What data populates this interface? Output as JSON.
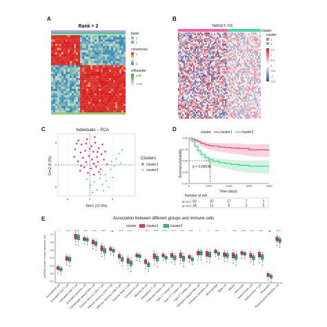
{
  "panels": {
    "A": {
      "letter": "A",
      "title": "Rank = 2",
      "legend": {
        "basis_label": "basis",
        "basis_items": [
          "1",
          "2"
        ],
        "consensus_label": "consensus",
        "consensus_ticks": [
          "1",
          "0"
        ],
        "silhouette_label": "silhouette",
        "silhouette_ticks": [
          "0.89",
          "-0.09"
        ]
      },
      "colors": {
        "high": "#d7191c",
        "mid": "#ffffbf",
        "low": "#2b83ba",
        "basis1": "#b79ddb",
        "basis2": "#4ecb8e",
        "silhouette": "#8fd16a"
      }
    },
    "B": {
      "letter": "B",
      "title": "TARGET−OS",
      "cluster_label": "cluster",
      "legend": {
        "title": "cluster",
        "items": [
          "1",
          "2"
        ],
        "ticks": [
          "1.5",
          "1",
          "0.5",
          "0",
          "-0.5",
          "-1",
          "-1.5"
        ]
      },
      "colors": {
        "cluster1": "#ff5fa2",
        "cluster2": "#4bd6a0"
      }
    },
    "C": {
      "letter": "C",
      "title": "Individuals − PCA",
      "xlabel": "Dim1 (10.4%)",
      "ylabel": "Dim2 (8.3%)",
      "xticks": [
        "-5",
        "0",
        "5"
      ],
      "yticks": [
        "5",
        "0",
        "-5"
      ],
      "legend_title": "Clusters",
      "legend_items": [
        "cluster1",
        "cluster2"
      ],
      "colors": {
        "cluster1": "#e8386d",
        "cluster2": "#3fd1a9"
      }
    },
    "D": {
      "letter": "D",
      "legend_title": "cluster",
      "legend_items": [
        "cluster1",
        "cluster2"
      ],
      "ylabel": "Survival probability",
      "xlabel": "Time (days)",
      "pvalue": "p = 0.00038",
      "xticks": [
        "0",
        "1000",
        "2000",
        "3000",
        "4000"
      ],
      "yticks": [
        "1.00",
        "0.75",
        "0.50",
        "0.25",
        "0.00"
      ],
      "risk_title": "Number at risk",
      "risk_rows": [
        {
          "name": "group1",
          "values": [
            "50",
            "37",
            "17",
            "7",
            "1"
          ]
        },
        {
          "name": "group2",
          "values": [
            "34",
            "11",
            "6",
            "2",
            "0"
          ]
        }
      ],
      "colors": {
        "cluster1": "#e8386d",
        "cluster2": "#2ecf7a"
      }
    },
    "E": {
      "letter": "E",
      "title": "Association between different groups and immune cells",
      "legend_title": "cluster",
      "legend_items": [
        "cluster1",
        "cluster2"
      ],
      "ylabel": "ssGSEA score of each immune cell",
      "yticks": [
        "0.7",
        "0.6",
        "0.5",
        "0.4",
        "0.3",
        "0.2",
        "0.1"
      ],
      "colors": {
        "cluster1": "#e8386d",
        "cluster2": "#2fbf8f"
      }
    }
  },
  "chart_data": [
    {
      "type": "heatmap",
      "panel": "A",
      "title": "Rank = 2",
      "blocks": [
        {
          "name": "block1",
          "fraction": 0.38,
          "consensus": 0.95
        },
        {
          "name": "block2",
          "fraction": 0.62,
          "consensus": 0.98
        }
      ],
      "colorbar": {
        "min": 0,
        "max": 1
      }
    },
    {
      "type": "heatmap",
      "panel": "B",
      "title": "TARGET−OS",
      "clusters": [
        {
          "name": "1",
          "fraction": 0.6
        },
        {
          "name": "2",
          "fraction": 0.4
        }
      ],
      "colorbar": {
        "min": -1.5,
        "max": 1.5
      }
    },
    {
      "type": "scatter",
      "panel": "C",
      "title": "Individuals − PCA",
      "xlabel": "Dim1 (10.4%)",
      "ylabel": "Dim2 (8.3%)",
      "xlim": [
        -7,
        10
      ],
      "ylim": [
        -7,
        7
      ],
      "series": [
        {
          "name": "cluster1",
          "points": [
            [
              -2.5,
              5.5
            ],
            [
              -1.8,
              4.6
            ],
            [
              -0.6,
              5.8
            ],
            [
              0.4,
              4.2
            ],
            [
              1.2,
              5.0
            ],
            [
              -3.2,
              3.5
            ],
            [
              -2.0,
              2.8
            ],
            [
              -1.0,
              3.2
            ],
            [
              0.8,
              3.0
            ],
            [
              2.0,
              3.8
            ],
            [
              -0.2,
              2.0
            ],
            [
              -1.5,
              1.6
            ],
            [
              0.5,
              1.2
            ],
            [
              1.6,
              1.8
            ],
            [
              2.6,
              2.4
            ],
            [
              -2.6,
              0.8
            ],
            [
              -0.8,
              0.6
            ],
            [
              0.9,
              0.3
            ],
            [
              1.8,
              0.7
            ],
            [
              3.1,
              1.2
            ],
            [
              -1.2,
              -0.5
            ],
            [
              0.3,
              -0.8
            ],
            [
              1.4,
              -0.4
            ],
            [
              2.4,
              -1.0
            ],
            [
              -0.4,
              -1.8
            ],
            [
              0.9,
              -2.2
            ],
            [
              2.0,
              -1.6
            ],
            [
              -2.1,
              -1.3
            ],
            [
              3.4,
              3.0
            ],
            [
              -3.4,
              1.8
            ],
            [
              1.1,
              6.3
            ],
            [
              -0.8,
              4.8
            ],
            [
              2.8,
              4.6
            ],
            [
              0.0,
              3.6
            ],
            [
              -1.9,
              -0.2
            ],
            [
              3.8,
              0.1
            ],
            [
              1.7,
              2.9
            ],
            [
              -2.9,
              4.8
            ]
          ]
        },
        {
          "name": "cluster2",
          "points": [
            [
              2.2,
              -3.0
            ],
            [
              3.4,
              -2.2
            ],
            [
              1.0,
              -3.8
            ],
            [
              4.6,
              -1.0
            ],
            [
              5.4,
              -0.2
            ],
            [
              2.8,
              -4.4
            ],
            [
              0.2,
              -4.6
            ],
            [
              3.6,
              -3.6
            ],
            [
              4.2,
              -5.0
            ],
            [
              1.6,
              -5.6
            ],
            [
              5.8,
              1.4
            ],
            [
              6.4,
              2.6
            ],
            [
              4.8,
              0.8
            ],
            [
              2.4,
              -2.0
            ],
            [
              -0.6,
              -3.2
            ],
            [
              3.0,
              -5.8
            ],
            [
              5.0,
              -2.8
            ],
            [
              0.6,
              -6.2
            ],
            [
              6.8,
              0.4
            ],
            [
              7.2,
              3.4
            ]
          ]
        }
      ]
    },
    {
      "type": "line",
      "panel": "D",
      "xlabel": "Time (days)",
      "ylabel": "Survival probability",
      "xlim": [
        0,
        4000
      ],
      "ylim": [
        0,
        1
      ],
      "series": [
        {
          "name": "cluster1",
          "x": [
            0,
            150,
            300,
            450,
            600,
            800,
            1000,
            1200,
            1500,
            1800,
            2100,
            2500,
            3000,
            3500,
            4000
          ],
          "y": [
            1.0,
            0.98,
            0.95,
            0.92,
            0.88,
            0.85,
            0.83,
            0.82,
            0.8,
            0.79,
            0.78,
            0.77,
            0.74,
            0.74,
            0.74
          ]
        },
        {
          "name": "cluster2",
          "x": [
            0,
            150,
            300,
            450,
            600,
            800,
            1000,
            1200,
            1500,
            1800,
            2100,
            2500,
            3000,
            3500,
            4000
          ],
          "y": [
            1.0,
            0.93,
            0.82,
            0.72,
            0.64,
            0.57,
            0.52,
            0.49,
            0.46,
            0.44,
            0.42,
            0.4,
            0.38,
            0.38,
            0.38
          ]
        }
      ]
    },
    {
      "type": "box",
      "panel": "E",
      "title": "Association between different groups and immune cells",
      "ylabel": "ssGSEA score of each immune cell",
      "ylim": [
        0.08,
        0.74
      ],
      "categories": [
        "Activated B cell",
        "Activated CD4 T cell",
        "Activated CD8 T cell",
        "Activated dendritic cell",
        "CD56bright natural killer cell",
        "Central memory CD4 T cell",
        "Effector memory CD4 T cell",
        "Effector memory CD8 T cell",
        "Gamma delta T cell",
        "Immature B cell",
        "Memory B cell",
        "Regulatory T cell",
        "T follicular helper cell",
        "Type 1 T helper cell",
        "Type 17 T helper cell",
        "Type 2 T helper cell",
        "CD56dim natural killer cell",
        "Immature dendritic cell",
        "Macrophage",
        "Mast cell",
        "MDSC",
        "Monocyte",
        "Natural killer cell",
        "Natural killer T cell",
        "Neutrophil",
        "Plasmacytoid dendritic cell"
      ],
      "significance": [
        "*",
        "****",
        "****",
        "****",
        "****",
        "****",
        "ns",
        "****",
        "****",
        "*",
        "****",
        "****",
        "****",
        "****",
        "****",
        "****",
        "*",
        "**",
        "****",
        "*",
        "****",
        "****",
        "****",
        "****",
        "ns",
        "****"
      ],
      "series": [
        {
          "name": "cluster1",
          "medians": [
            0.27,
            0.39,
            0.67,
            0.64,
            0.6,
            0.52,
            0.51,
            0.42,
            0.36,
            0.43,
            0.35,
            0.42,
            0.43,
            0.43,
            0.43,
            0.41,
            0.46,
            0.45,
            0.48,
            0.44,
            0.43,
            0.46,
            0.43,
            0.44,
            0.18,
            0.64
          ]
        },
        {
          "name": "cluster2",
          "medians": [
            0.25,
            0.38,
            0.66,
            0.63,
            0.58,
            0.49,
            0.49,
            0.38,
            0.33,
            0.42,
            0.31,
            0.39,
            0.4,
            0.4,
            0.39,
            0.38,
            0.46,
            0.44,
            0.45,
            0.43,
            0.41,
            0.45,
            0.4,
            0.41,
            0.16,
            0.62
          ]
        }
      ]
    }
  ]
}
